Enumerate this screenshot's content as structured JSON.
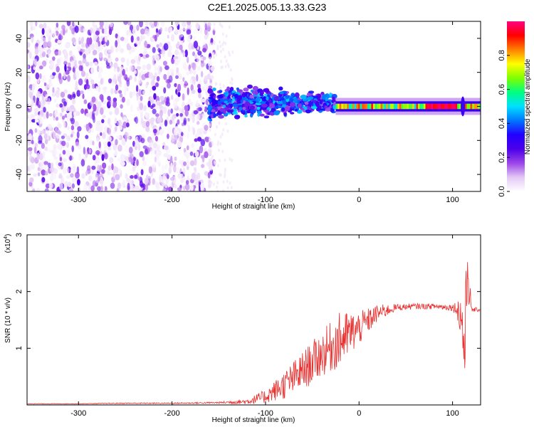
{
  "title": "C2E1.2025.005.13.33.G23",
  "chart_data": [
    {
      "type": "heatmap",
      "title": "C2E1.2025.005.13.33.G23",
      "xlabel": "Height of straight line (km)",
      "ylabel": "Frequency (Hz)",
      "xlim": [
        -355,
        130
      ],
      "ylim": [
        -50,
        50
      ],
      "xticks": [
        -300,
        -200,
        -100,
        0,
        100
      ],
      "yticks": [
        -40,
        -20,
        0,
        20,
        40
      ],
      "colorbar": {
        "label": "Normalized spectral amplitude",
        "range": [
          0,
          1
        ],
        "ticks": [
          0.0,
          0.2,
          0.4,
          0.6,
          0.8
        ],
        "tick_labels": [
          "0.0",
          "0.2",
          "0.4",
          "0.6",
          "0.8"
        ],
        "colormap": [
          "#ffffff",
          "#e3c8f5",
          "#9b45e8",
          "#4b00ea",
          "#2200ff",
          "#0077ff",
          "#00e0ff",
          "#00ff80",
          "#7fff00",
          "#ffff00",
          "#ff8000",
          "#ff0000",
          "#ff0080"
        ]
      },
      "regions": [
        {
          "x_range": [
            -355,
            -155
          ],
          "freq_range": [
            -50,
            50
          ],
          "amplitude": [
            0.02,
            0.25
          ]
        },
        {
          "x_range": [
            -160,
            -25
          ],
          "freq_range": [
            -10,
            15
          ],
          "amplitude": [
            0.15,
            0.5
          ]
        },
        {
          "x_range": [
            -25,
            130
          ],
          "freq_range": [
            -3,
            3
          ],
          "amplitude": [
            0.5,
            1.0
          ]
        }
      ]
    },
    {
      "type": "line",
      "xlabel": "Height of straight line (km)",
      "ylabel": "SNR (10 * v/v)",
      "y_scale_label": "(x10",
      "y_scale_exp": "4",
      "y_scale_close": ")",
      "xlim": [
        -355,
        130
      ],
      "ylim": [
        0,
        3
      ],
      "xticks": [
        -300,
        -200,
        -100,
        0,
        100
      ],
      "yticks": [
        1,
        2,
        3
      ],
      "color": "#e8302f",
      "series": [
        {
          "x": [
            -355,
            -300,
            -250,
            -200,
            -150,
            -120,
            -100,
            -80,
            -60,
            -40,
            -20,
            0,
            20,
            40,
            60,
            80,
            100,
            105,
            110,
            113,
            116,
            120,
            130
          ],
          "y": [
            0.02,
            0.02,
            0.03,
            0.03,
            0.04,
            0.06,
            0.15,
            0.35,
            0.6,
            0.9,
            1.15,
            1.35,
            1.62,
            1.72,
            1.74,
            1.74,
            1.72,
            1.7,
            1.5,
            0.9,
            2.5,
            1.68,
            1.68
          ],
          "noise": [
            0.005,
            0.005,
            0.01,
            0.01,
            0.015,
            0.05,
            0.12,
            0.25,
            0.35,
            0.4,
            0.5,
            0.3,
            0.15,
            0.06,
            0.05,
            0.05,
            0.06,
            0.15,
            0.6,
            0.8,
            0.7,
            0.05,
            0.03
          ]
        }
      ]
    }
  ]
}
